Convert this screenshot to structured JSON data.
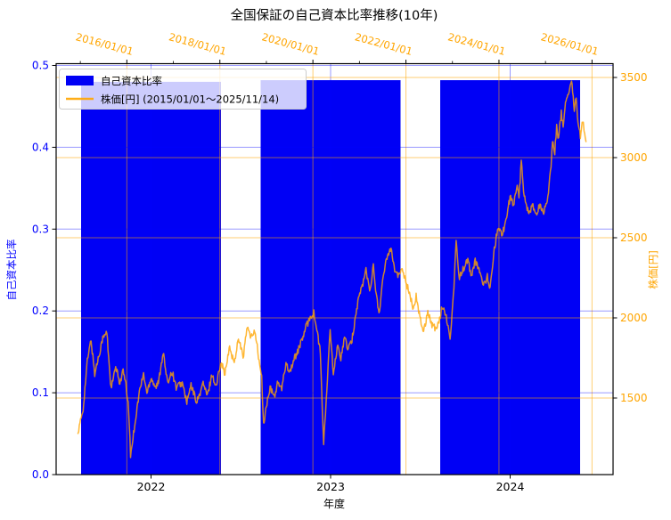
{
  "title": "全国保証の自己資本比率推移(10年)",
  "colors": {
    "bar_blue": "#0000f5",
    "line_orange": "#ffa500",
    "left_axis_blue": "#0000ff",
    "right_axis_orange": "#ffa500",
    "grid_blue": "rgba(0,0,255,0.40)",
    "grid_orange": "rgba(255,165,0,0.55)",
    "spine_black": "#000000",
    "legend_bg": "rgba(255,255,255,0.8)",
    "legend_border": "#cccccc"
  },
  "legend": {
    "items": [
      {
        "label": "自己資本比率",
        "marker": "blue-patch"
      },
      {
        "label": "株価[円] (2015/01/01～2025/11/14)",
        "marker": "orange-line"
      }
    ]
  },
  "chart_data": {
    "type": "bar",
    "subtype": "dual-axis bar + line (matplotlib style)",
    "title": "全国保証の自己資本比率推移(10年)",
    "grid": "both x and y, per-axis colored (blue = ratio axis, orange = price/date axis)",
    "legend_position": "upper left",
    "bars": {
      "name": "自己資本比率",
      "categories": [
        "2022",
        "2023",
        "2024"
      ],
      "values": [
        0.48,
        0.482,
        0.482
      ],
      "axis": "left",
      "ylim": [
        0,
        0.5
      ]
    },
    "axes": {
      "top": {
        "type": "date",
        "color": "#ffa500",
        "tick_labels": [
          "2016/01/01",
          "2018/01/01",
          "2020/01/01",
          "2022/01/01",
          "2024/01/01",
          "2026/01/01"
        ],
        "major_years": [
          2016,
          2018,
          2020,
          2022,
          2024,
          2026
        ],
        "minor_years": [
          2015,
          2017,
          2019,
          2021,
          2023,
          2025
        ],
        "range_years": [
          2014.48,
          2026.45
        ]
      },
      "bottom": {
        "label": "年度",
        "color": "#000000",
        "tick_labels": [
          "2022",
          "2023",
          "2024"
        ]
      },
      "left": {
        "label": "自己資本比率",
        "color": "#0000ff",
        "tick_labels": [
          "0.0",
          "0.1",
          "0.2",
          "0.3",
          "0.4",
          "0.5"
        ],
        "range": [
          0.0,
          0.5
        ]
      },
      "right": {
        "label": "株価[円]",
        "color": "#ffa500",
        "tick_labels": [
          "1500",
          "2000",
          "2500",
          "3000",
          "3500"
        ],
        "tick_values": [
          1500,
          2000,
          2500,
          3000,
          3500
        ],
        "range": [
          1030,
          3585
        ]
      }
    },
    "line": {
      "name": "株価[円] (2015/01/01～2025/11/14)",
      "axis": "right",
      "units": "yen",
      "x_units": "decimal year",
      "texture_noise_yen": 22,
      "points": [
        [
          2014.95,
          1279
        ],
        [
          2015.06,
          1430
        ],
        [
          2015.15,
          1730
        ],
        [
          2015.23,
          1865
        ],
        [
          2015.31,
          1650
        ],
        [
          2015.41,
          1780
        ],
        [
          2015.47,
          1865
        ],
        [
          2015.57,
          1910
        ],
        [
          2015.66,
          1557
        ],
        [
          2015.76,
          1690
        ],
        [
          2015.85,
          1595
        ],
        [
          2015.92,
          1670
        ],
        [
          2015.98,
          1576
        ],
        [
          2016.04,
          1430
        ],
        [
          2016.08,
          1140
        ],
        [
          2016.17,
          1335
        ],
        [
          2016.27,
          1540
        ],
        [
          2016.36,
          1650
        ],
        [
          2016.43,
          1530
        ],
        [
          2016.52,
          1630
        ],
        [
          2016.62,
          1567
        ],
        [
          2016.68,
          1594
        ],
        [
          2016.78,
          1790
        ],
        [
          2016.87,
          1594
        ],
        [
          2016.97,
          1670
        ],
        [
          2017.06,
          1567
        ],
        [
          2017.19,
          1594
        ],
        [
          2017.29,
          1474
        ],
        [
          2017.38,
          1576
        ],
        [
          2017.51,
          1474
        ],
        [
          2017.64,
          1594
        ],
        [
          2017.73,
          1511
        ],
        [
          2017.83,
          1650
        ],
        [
          2017.92,
          1567
        ],
        [
          2018.02,
          1733
        ],
        [
          2018.11,
          1650
        ],
        [
          2018.21,
          1817
        ],
        [
          2018.31,
          1715
        ],
        [
          2018.4,
          1881
        ],
        [
          2018.5,
          1752
        ],
        [
          2018.59,
          1946
        ],
        [
          2018.67,
          1870
        ],
        [
          2018.75,
          1930
        ],
        [
          2018.83,
          1760
        ],
        [
          2018.9,
          1620
        ],
        [
          2018.94,
          1330
        ],
        [
          2019.0,
          1450
        ],
        [
          2019.08,
          1560
        ],
        [
          2019.17,
          1510
        ],
        [
          2019.25,
          1600
        ],
        [
          2019.33,
          1550
        ],
        [
          2019.42,
          1724
        ],
        [
          2019.5,
          1660
        ],
        [
          2019.58,
          1730
        ],
        [
          2019.67,
          1790
        ],
        [
          2019.75,
          1850
        ],
        [
          2019.85,
          1940
        ],
        [
          2019.93,
          2000
        ],
        [
          2020.02,
          2030
        ],
        [
          2020.1,
          1900
        ],
        [
          2020.16,
          1780
        ],
        [
          2020.23,
          1206
        ],
        [
          2020.3,
          1550
        ],
        [
          2020.37,
          1930
        ],
        [
          2020.44,
          1632
        ],
        [
          2020.52,
          1820
        ],
        [
          2020.6,
          1750
        ],
        [
          2020.68,
          1880
        ],
        [
          2020.76,
          1800
        ],
        [
          2020.84,
          1860
        ],
        [
          2020.9,
          1980
        ],
        [
          2020.98,
          2122
        ],
        [
          2021.06,
          2200
        ],
        [
          2021.14,
          2300
        ],
        [
          2021.22,
          2170
        ],
        [
          2021.3,
          2320
        ],
        [
          2021.36,
          2150
        ],
        [
          2021.42,
          2030
        ],
        [
          2021.5,
          2220
        ],
        [
          2021.58,
          2372
        ],
        [
          2021.68,
          2445
        ],
        [
          2021.76,
          2300
        ],
        [
          2021.84,
          2260
        ],
        [
          2021.92,
          2310
        ],
        [
          2022.0,
          2230
        ],
        [
          2022.09,
          2130
        ],
        [
          2022.16,
          2060
        ],
        [
          2022.22,
          2140
        ],
        [
          2022.3,
          2000
        ],
        [
          2022.38,
          1918
        ],
        [
          2022.47,
          2040
        ],
        [
          2022.56,
          1960
        ],
        [
          2022.66,
          1928
        ],
        [
          2022.79,
          2076
        ],
        [
          2022.88,
          1990
        ],
        [
          2022.95,
          1881
        ],
        [
          2023.02,
          2130
        ],
        [
          2023.08,
          2480
        ],
        [
          2023.15,
          2250
        ],
        [
          2023.24,
          2310
        ],
        [
          2023.33,
          2365
        ],
        [
          2023.41,
          2250
        ],
        [
          2023.49,
          2355
        ],
        [
          2023.57,
          2300
        ],
        [
          2023.68,
          2206
        ],
        [
          2023.75,
          2260
        ],
        [
          2023.81,
          2178
        ],
        [
          2023.9,
          2430
        ],
        [
          2023.97,
          2550
        ],
        [
          2024.02,
          2570
        ],
        [
          2024.07,
          2510
        ],
        [
          2024.13,
          2595
        ],
        [
          2024.19,
          2680
        ],
        [
          2024.25,
          2760
        ],
        [
          2024.31,
          2700
        ],
        [
          2024.38,
          2826
        ],
        [
          2024.43,
          2750
        ],
        [
          2024.48,
          2975
        ],
        [
          2024.53,
          2800
        ],
        [
          2024.58,
          2700
        ],
        [
          2024.67,
          2660
        ],
        [
          2024.73,
          2705
        ],
        [
          2024.8,
          2641
        ],
        [
          2024.87,
          2700
        ],
        [
          2024.96,
          2660
        ],
        [
          2025.05,
          2752
        ],
        [
          2025.12,
          2956
        ],
        [
          2025.15,
          3094
        ],
        [
          2025.2,
          3039
        ],
        [
          2025.24,
          3196
        ],
        [
          2025.28,
          3113
        ],
        [
          2025.34,
          3289
        ],
        [
          2025.38,
          3178
        ],
        [
          2025.43,
          3326
        ],
        [
          2025.49,
          3400
        ],
        [
          2025.56,
          3489
        ],
        [
          2025.62,
          3289
        ],
        [
          2025.66,
          3372
        ],
        [
          2025.7,
          3224
        ],
        [
          2025.75,
          3131
        ],
        [
          2025.8,
          3230
        ],
        [
          2025.87,
          3100
        ]
      ]
    }
  }
}
